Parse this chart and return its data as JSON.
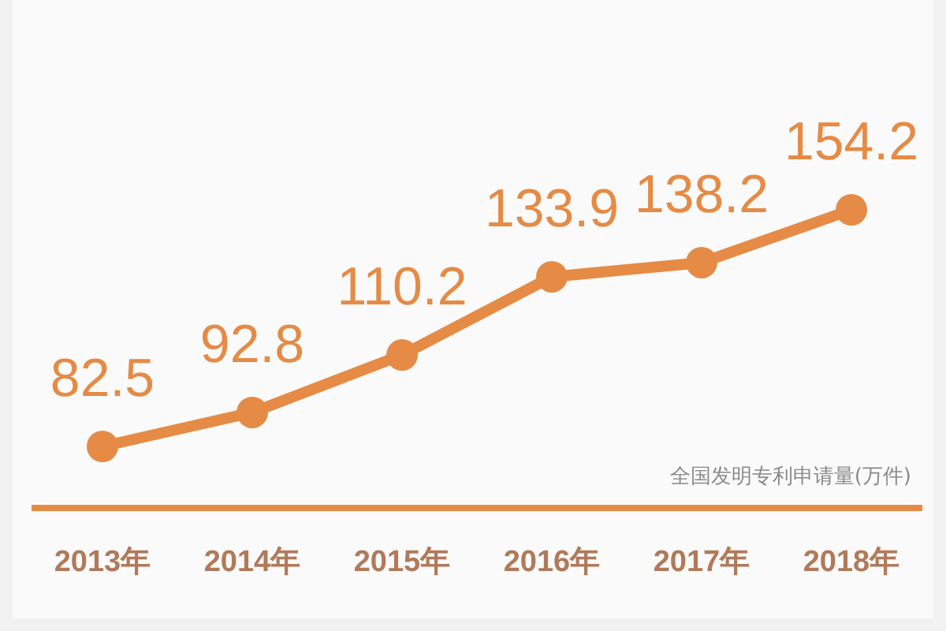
{
  "chart_data": {
    "type": "line",
    "categories": [
      "2013年",
      "2014年",
      "2015年",
      "2016年",
      "2017年",
      "2018年"
    ],
    "series": [
      {
        "color": "#e58b45",
        "values": [
          82.5,
          92.8,
          110.2,
          133.9,
          138.2,
          154.2
        ]
      }
    ],
    "data_labels": true,
    "marker": "circle",
    "line_style": "solid",
    "annotations": [
      "全国发明专利申请量(万件)"
    ]
  }
}
